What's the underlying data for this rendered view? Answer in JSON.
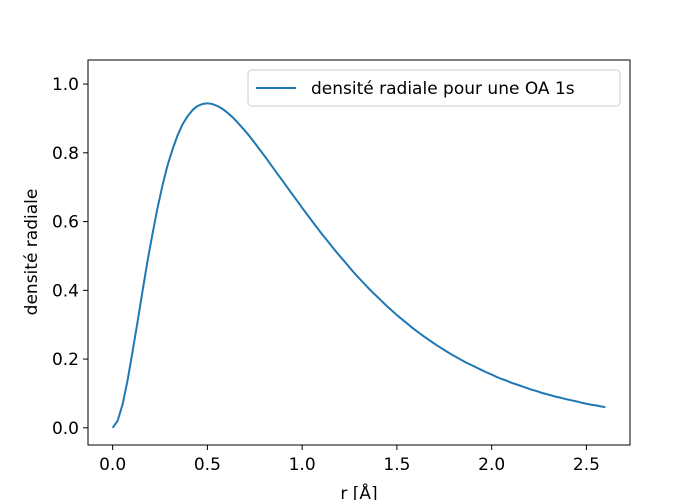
{
  "chart_data": {
    "type": "line",
    "title": "",
    "xlabel": "r [Å]",
    "ylabel": "densité radiale",
    "xlim": [
      -0.13,
      2.73
    ],
    "ylim": [
      -0.05,
      1.07
    ],
    "xticks": [
      0.0,
      0.5,
      1.0,
      1.5,
      2.0,
      2.5
    ],
    "xtick_labels": [
      "0.0",
      "0.5",
      "1.0",
      "1.5",
      "2.0",
      "2.5"
    ],
    "yticks": [
      0.0,
      0.2,
      0.4,
      0.6,
      0.8,
      1.0
    ],
    "ytick_labels": [
      "0.0",
      "0.2",
      "0.4",
      "0.6",
      "0.8",
      "1.0"
    ],
    "grid": false,
    "legend_position": "top-right",
    "series": [
      {
        "name": "densité radiale pour une OA 1s",
        "color": "#1f77b4",
        "x": [
          0.0,
          0.026,
          0.053,
          0.079,
          0.105,
          0.132,
          0.158,
          0.184,
          0.211,
          0.237,
          0.263,
          0.289,
          0.316,
          0.342,
          0.368,
          0.395,
          0.421,
          0.447,
          0.474,
          0.5,
          0.526,
          0.553,
          0.579,
          0.605,
          0.632,
          0.658,
          0.684,
          0.711,
          0.737,
          0.763,
          0.789,
          0.816,
          0.842,
          0.868,
          0.895,
          0.921,
          0.947,
          0.974,
          1.0,
          1.026,
          1.053,
          1.079,
          1.105,
          1.132,
          1.158,
          1.184,
          1.211,
          1.237,
          1.263,
          1.289,
          1.316,
          1.342,
          1.368,
          1.395,
          1.421,
          1.447,
          1.474,
          1.5,
          1.526,
          1.553,
          1.579,
          1.605,
          1.632,
          1.658,
          1.684,
          1.711,
          1.737,
          1.763,
          1.789,
          1.816,
          1.842,
          1.868,
          1.895,
          1.921,
          1.947,
          1.974,
          2.0,
          2.026,
          2.053,
          2.079,
          2.105,
          2.132,
          2.158,
          2.184,
          2.211,
          2.237,
          2.263,
          2.289,
          2.316,
          2.342,
          2.368,
          2.395,
          2.421,
          2.447,
          2.474,
          2.5,
          2.526,
          2.553,
          2.579,
          2.6
        ],
        "y": [
          0.0,
          0.02,
          0.069,
          0.139,
          0.221,
          0.31,
          0.399,
          0.485,
          0.566,
          0.64,
          0.705,
          0.762,
          0.81,
          0.85,
          0.882,
          0.906,
          0.924,
          0.936,
          0.942,
          0.944,
          0.942,
          0.936,
          0.928,
          0.917,
          0.904,
          0.889,
          0.873,
          0.856,
          0.838,
          0.819,
          0.8,
          0.78,
          0.76,
          0.74,
          0.72,
          0.7,
          0.68,
          0.66,
          0.64,
          0.621,
          0.601,
          0.582,
          0.563,
          0.545,
          0.527,
          0.509,
          0.492,
          0.475,
          0.458,
          0.442,
          0.426,
          0.411,
          0.396,
          0.382,
          0.368,
          0.354,
          0.341,
          0.328,
          0.316,
          0.304,
          0.292,
          0.281,
          0.27,
          0.26,
          0.25,
          0.24,
          0.231,
          0.222,
          0.213,
          0.205,
          0.197,
          0.189,
          0.182,
          0.175,
          0.168,
          0.161,
          0.155,
          0.148,
          0.142,
          0.137,
          0.131,
          0.126,
          0.121,
          0.116,
          0.111,
          0.107,
          0.102,
          0.098,
          0.094,
          0.09,
          0.087,
          0.083,
          0.08,
          0.077,
          0.073,
          0.07,
          0.067,
          0.065,
          0.062,
          0.06
        ]
      }
    ]
  }
}
